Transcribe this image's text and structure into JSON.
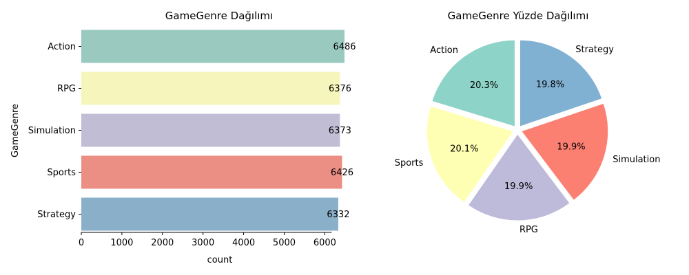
{
  "chart_data": [
    {
      "type": "bar",
      "orientation": "horizontal",
      "title": "GameGenre Dağılımı",
      "xlabel": "count",
      "ylabel": "GameGenre",
      "categories": [
        "Action",
        "RPG",
        "Simulation",
        "Sports",
        "Strategy"
      ],
      "values": [
        6486,
        6376,
        6373,
        6426,
        6332
      ],
      "value_labels": [
        "6486",
        "6376",
        "6373",
        "6426",
        "6332"
      ],
      "colors": [
        "#99c9bf",
        "#f6f6bc",
        "#c1bdd5",
        "#eb8e84",
        "#8aafc9"
      ],
      "xlim": [
        0,
        6486
      ],
      "xticks": [
        0,
        1000,
        2000,
        3000,
        4000,
        5000,
        6000
      ],
      "grid": false,
      "legend": "none"
    },
    {
      "type": "pie",
      "title": "GameGenre Yüzde Dağılımı",
      "labels": [
        "Strategy",
        "Simulation",
        "RPG",
        "Sports",
        "Action"
      ],
      "values": [
        6332,
        6373,
        6376,
        6426,
        6486
      ],
      "percent_labels": [
        "19.8%",
        "19.9%",
        "19.9%",
        "20.1%",
        "20.3%"
      ],
      "colors": [
        "#80b1d3",
        "#fb8072",
        "#bebada",
        "#ffffb3",
        "#8dd3c7"
      ],
      "start_angle_deg": 90,
      "direction": "clockwise",
      "exploded": true,
      "legend": "none"
    }
  ]
}
